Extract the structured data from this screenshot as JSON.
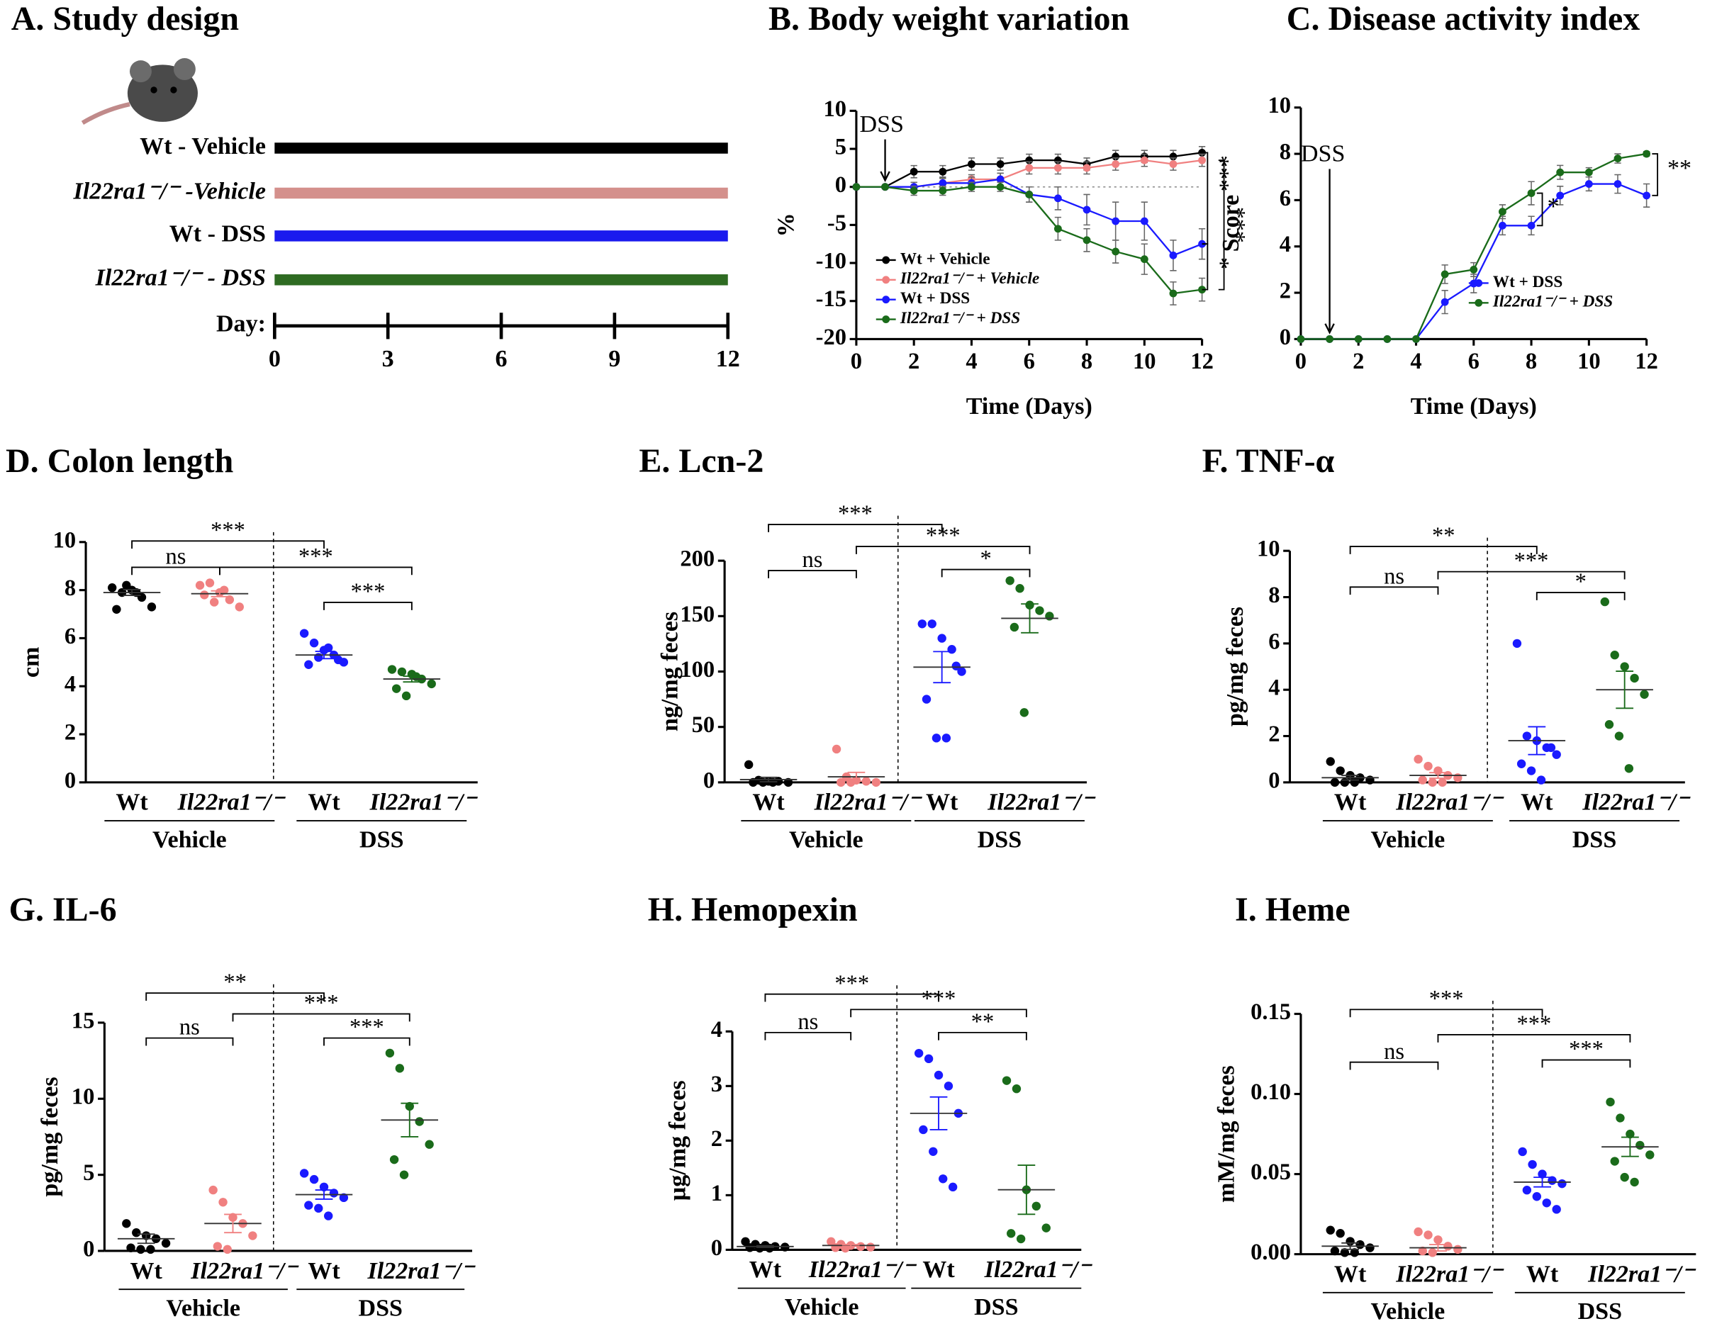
{
  "chart_data": [
    {
      "type": "design",
      "title": "A. Study design",
      "categories": [
        "Wt - Vehicle",
        "Il22ra1⁻/⁻ -Vehicle",
        "Wt - DSS",
        "Il22ra1⁻/⁻ - DSS"
      ],
      "colors": [
        "#000000",
        "#d4908c",
        "#1a1aee",
        "#2e6b22"
      ],
      "xlabel": "Day:",
      "xlim": [
        0,
        12
      ],
      "xticks": [
        0,
        3,
        6,
        9,
        12
      ]
    },
    {
      "type": "line",
      "title": "B. Body weight variation",
      "xlabel": "Time (Days)",
      "ylabel": "%",
      "x": [
        0,
        1,
        2,
        3,
        4,
        5,
        6,
        7,
        8,
        9,
        10,
        11,
        12
      ],
      "xlim": [
        0,
        12
      ],
      "xticks": [
        0,
        2,
        4,
        6,
        8,
        10,
        12
      ],
      "ylim": [
        -20,
        10
      ],
      "yticks": [
        -20,
        -15,
        -10,
        -5,
        0,
        5,
        10
      ],
      "series": [
        {
          "name": "Wt + Vehicle",
          "color": "#000000",
          "values": [
            0,
            0,
            2,
            2,
            3,
            3,
            3.5,
            3.5,
            3,
            4,
            4,
            4,
            4.5
          ],
          "errors": [
            0,
            0,
            0.8,
            0.8,
            0.8,
            0.8,
            0.8,
            0.8,
            0.8,
            0.8,
            0.8,
            0.8,
            0.8
          ]
        },
        {
          "name": "Il22ra1⁻/⁻ + Vehicle",
          "color": "#f08080",
          "values": [
            0,
            0,
            0,
            0.5,
            1,
            1,
            2.5,
            2.5,
            2.5,
            3,
            3.5,
            3,
            3.5
          ],
          "errors": [
            0,
            0,
            0.6,
            0.6,
            0.6,
            0.8,
            0.8,
            0.8,
            0.8,
            0.8,
            0.8,
            0.8,
            0.8
          ]
        },
        {
          "name": "Wt + DSS",
          "color": "#1a1aff",
          "values": [
            0,
            0,
            0,
            0.5,
            0.5,
            1,
            -1,
            -1.5,
            -3,
            -4.5,
            -4.5,
            -9,
            -7.5
          ],
          "errors": [
            0,
            0,
            0.6,
            0.8,
            0.8,
            0.8,
            1,
            1.5,
            2,
            2.5,
            2.5,
            2,
            2
          ]
        },
        {
          "name": "Il22ra1⁻/⁻ + DSS",
          "color": "#1a6b1a",
          "values": [
            0,
            0,
            -0.5,
            -0.5,
            0,
            0,
            -1,
            -5.5,
            -7,
            -8.5,
            -9.5,
            -14,
            -13.5
          ],
          "errors": [
            0,
            0,
            0.6,
            0.6,
            0.6,
            0.6,
            1,
            1.5,
            1.5,
            1.5,
            2,
            1.5,
            1.5
          ]
        }
      ],
      "annotations": [
        "DSS",
        "***",
        "***",
        "*"
      ]
    },
    {
      "type": "line",
      "title": "C. Disease activity index",
      "xlabel": "Time (Days)",
      "ylabel": "Score",
      "x": [
        0,
        1,
        2,
        3,
        4,
        5,
        6,
        7,
        8,
        9,
        10,
        11,
        12
      ],
      "xlim": [
        0,
        12
      ],
      "xticks": [
        0,
        2,
        4,
        6,
        8,
        10,
        12
      ],
      "ylim": [
        0,
        10
      ],
      "yticks": [
        0,
        2,
        4,
        6,
        8,
        10
      ],
      "series": [
        {
          "name": "Wt + DSS",
          "color": "#1a1aff",
          "values": [
            0,
            0,
            0,
            0,
            0,
            1.6,
            2.4,
            4.9,
            4.9,
            6.2,
            6.7,
            6.7,
            6.2
          ],
          "errors": [
            0,
            0,
            0,
            0,
            0,
            0.5,
            0.4,
            0.4,
            0.4,
            0.4,
            0.3,
            0.4,
            0.5
          ]
        },
        {
          "name": "Il22ra1⁻/⁻ + DSS",
          "color": "#1a6b1a",
          "values": [
            0,
            0,
            0,
            0,
            0,
            2.8,
            3,
            5.5,
            6.3,
            7.2,
            7.2,
            7.8,
            8
          ],
          "errors": [
            0,
            0,
            0,
            0,
            0,
            0.4,
            0.3,
            0.3,
            0.5,
            0.3,
            0.2,
            0.2,
            0.1
          ]
        }
      ],
      "annotations": [
        "DSS",
        "**",
        "*"
      ]
    },
    {
      "type": "dot",
      "title": "D. Colon length",
      "ylabel": "cm",
      "ylim": [
        0,
        10
      ],
      "yticks": [
        0,
        2,
        4,
        6,
        8,
        10
      ],
      "categories": [
        "Wt",
        "Il22ra1⁻/⁻",
        "Wt",
        "Il22ra1⁻/⁻"
      ],
      "groups": [
        "Vehicle",
        "DSS"
      ],
      "colors": [
        "#000000",
        "#f08080",
        "#1a1aff",
        "#1a6b1a"
      ],
      "points": [
        [
          8.1,
          7.9,
          8.0,
          7.7,
          7.3,
          7.2,
          8.2,
          7.9
        ],
        [
          8.2,
          8.3,
          7.9,
          7.6,
          7.3,
          7.8,
          7.5,
          8.0
        ],
        [
          6.2,
          5.8,
          5.5,
          5.3,
          5.0,
          4.9,
          5.2,
          5.6,
          5.1
        ],
        [
          4.7,
          4.6,
          4.5,
          4.3,
          4.1,
          3.9,
          3.6,
          4.4
        ]
      ],
      "means": [
        7.9,
        7.85,
        5.3,
        4.3
      ],
      "errors": [
        0.12,
        0.12,
        0.15,
        0.12
      ],
      "comparisons": [
        {
          "groups": [
            0,
            2
          ],
          "label": "***"
        },
        {
          "groups": [
            0,
            1
          ],
          "label": "ns"
        },
        {
          "groups": [
            1,
            3
          ],
          "label": "***"
        },
        {
          "groups": [
            2,
            3
          ],
          "label": "***"
        }
      ]
    },
    {
      "type": "dot",
      "title": "E. Lcn-2",
      "ylabel": "ng/mg feces",
      "ylim": [
        0,
        200
      ],
      "yticks": [
        0,
        50,
        100,
        150,
        200
      ],
      "categories": [
        "Wt",
        "Il22ra1⁻/⁻",
        "Wt",
        "Il22ra1⁻/⁻"
      ],
      "groups": [
        "Vehicle",
        "DSS"
      ],
      "colors": [
        "#000000",
        "#f08080",
        "#1a1aff",
        "#1a6b1a"
      ],
      "points": [
        [
          16,
          2,
          1,
          1,
          0,
          0,
          0,
          0
        ],
        [
          30,
          5,
          2,
          1,
          0,
          0,
          0
        ],
        [
          143,
          143,
          130,
          120,
          100,
          75,
          40,
          40,
          105
        ],
        [
          182,
          175,
          160,
          155,
          150,
          140,
          63
        ]
      ],
      "means": [
        2.5,
        5,
        104,
        148
      ],
      "errors": [
        2,
        4,
        14,
        13
      ],
      "comparisons": [
        {
          "groups": [
            0,
            2
          ],
          "label": "***"
        },
        {
          "groups": [
            0,
            1
          ],
          "label": "ns"
        },
        {
          "groups": [
            1,
            3
          ],
          "label": "***"
        },
        {
          "groups": [
            2,
            3
          ],
          "label": "*"
        }
      ]
    },
    {
      "type": "dot",
      "title": "F. TNF-α",
      "ylabel": "pg/mg feces",
      "ylim": [
        0,
        10
      ],
      "yticks": [
        0,
        2,
        4,
        6,
        8,
        10
      ],
      "categories": [
        "Wt",
        "Il22ra1⁻/⁻",
        "Wt",
        "Il22ra1⁻/⁻"
      ],
      "groups": [
        "Vehicle",
        "DSS"
      ],
      "colors": [
        "#000000",
        "#f08080",
        "#1a1aff",
        "#1a6b1a"
      ],
      "points": [
        [
          0.9,
          0.5,
          0.3,
          0.2,
          0.1,
          0,
          0,
          0
        ],
        [
          1.0,
          0.7,
          0.5,
          0.3,
          0.2,
          0.1,
          0,
          0
        ],
        [
          6.0,
          2.0,
          1.8,
          1.5,
          1.2,
          0.8,
          0.5,
          0.1,
          1.5
        ],
        [
          7.8,
          5.5,
          5.0,
          4.5,
          3.8,
          2.5,
          2.0,
          0.6
        ]
      ],
      "means": [
        0.2,
        0.3,
        1.8,
        4.0
      ],
      "errors": [
        0.1,
        0.12,
        0.6,
        0.8
      ],
      "comparisons": [
        {
          "groups": [
            0,
            2
          ],
          "label": "**"
        },
        {
          "groups": [
            0,
            1
          ],
          "label": "ns"
        },
        {
          "groups": [
            1,
            3
          ],
          "label": "***"
        },
        {
          "groups": [
            2,
            3
          ],
          "label": "*"
        }
      ]
    },
    {
      "type": "dot",
      "title": "G. IL-6",
      "ylabel": "pg/mg feces",
      "ylim": [
        0,
        15
      ],
      "yticks": [
        0,
        5,
        10,
        15
      ],
      "categories": [
        "Wt",
        "Il22ra1⁻/⁻",
        "Wt",
        "Il22ra1⁻/⁻"
      ],
      "groups": [
        "Vehicle",
        "DSS"
      ],
      "colors": [
        "#000000",
        "#f08080",
        "#1a1aff",
        "#1a6b1a"
      ],
      "points": [
        [
          1.8,
          1.2,
          1.0,
          0.8,
          0.5,
          0.2,
          0.1,
          0.1
        ],
        [
          4.0,
          3.2,
          2.2,
          1.8,
          1.0,
          0.3,
          0.1
        ],
        [
          5.1,
          4.7,
          4.2,
          3.8,
          3.5,
          3.0,
          2.8,
          2.3
        ],
        [
          13,
          12,
          9.5,
          8.5,
          7,
          6,
          5
        ]
      ],
      "means": [
        0.8,
        1.8,
        3.7,
        8.6
      ],
      "errors": [
        0.3,
        0.6,
        0.3,
        1.1
      ],
      "comparisons": [
        {
          "groups": [
            0,
            2
          ],
          "label": "**"
        },
        {
          "groups": [
            0,
            1
          ],
          "label": "ns"
        },
        {
          "groups": [
            1,
            3
          ],
          "label": "***"
        },
        {
          "groups": [
            2,
            3
          ],
          "label": "***"
        }
      ]
    },
    {
      "type": "dot",
      "title": "H. Hemopexin",
      "ylabel": "µg/mg feces",
      "ylim": [
        0,
        4
      ],
      "yticks": [
        0,
        1,
        2,
        3,
        4
      ],
      "categories": [
        "Wt",
        "Il22ra1⁻/⁻",
        "Wt",
        "Il22ra1⁻/⁻"
      ],
      "groups": [
        "Vehicle",
        "DSS"
      ],
      "colors": [
        "#000000",
        "#f08080",
        "#1a1aff",
        "#1a6b1a"
      ],
      "points": [
        [
          0.15,
          0.1,
          0.08,
          0.06,
          0.05,
          0.04,
          0.03,
          0.03
        ],
        [
          0.15,
          0.1,
          0.08,
          0.06,
          0.05,
          0.04,
          0.03
        ],
        [
          3.6,
          3.5,
          3.2,
          3.0,
          2.5,
          2.2,
          1.8,
          1.3,
          1.15
        ],
        [
          3.1,
          2.95,
          1.1,
          0.8,
          0.4,
          0.3,
          0.2
        ]
      ],
      "means": [
        0.06,
        0.08,
        2.5,
        1.1
      ],
      "errors": [
        0.015,
        0.015,
        0.3,
        0.45
      ],
      "comparisons": [
        {
          "groups": [
            0,
            2
          ],
          "label": "***"
        },
        {
          "groups": [
            0,
            1
          ],
          "label": "ns"
        },
        {
          "groups": [
            1,
            3
          ],
          "label": "***"
        },
        {
          "groups": [
            2,
            3
          ],
          "label": "**"
        }
      ]
    },
    {
      "type": "dot",
      "title": "I. Heme",
      "ylabel": "mM/mg feces",
      "ylim": [
        0,
        0.15
      ],
      "yticks": [
        {
          "value": 0,
          "label": "0.00"
        },
        0.05,
        {
          "value": 0.1,
          "label": "0.10"
        },
        0.15
      ],
      "categories": [
        "Wt",
        "Il22ra1⁻/⁻",
        "Wt",
        "Il22ra1⁻/⁻"
      ],
      "groups": [
        "Vehicle",
        "DSS"
      ],
      "colors": [
        "#000000",
        "#f08080",
        "#1a1aff",
        "#1a6b1a"
      ],
      "points": [
        [
          0.015,
          0.013,
          0.008,
          0.006,
          0.004,
          0.002,
          0.001,
          0.001
        ],
        [
          0.014,
          0.012,
          0.009,
          0.005,
          0.003,
          0.002,
          0.001
        ],
        [
          0.064,
          0.056,
          0.05,
          0.046,
          0.044,
          0.04,
          0.036,
          0.032,
          0.028
        ],
        [
          0.095,
          0.085,
          0.075,
          0.068,
          0.062,
          0.058,
          0.048,
          0.045
        ]
      ],
      "means": [
        0.005,
        0.004,
        0.045,
        0.067
      ],
      "errors": [
        0.002,
        0.002,
        0.003,
        0.006
      ],
      "comparisons": [
        {
          "groups": [
            0,
            2
          ],
          "label": "***"
        },
        {
          "groups": [
            0,
            1
          ],
          "label": "ns"
        },
        {
          "groups": [
            1,
            3
          ],
          "label": "***"
        },
        {
          "groups": [
            2,
            3
          ],
          "label": "***"
        }
      ]
    }
  ]
}
